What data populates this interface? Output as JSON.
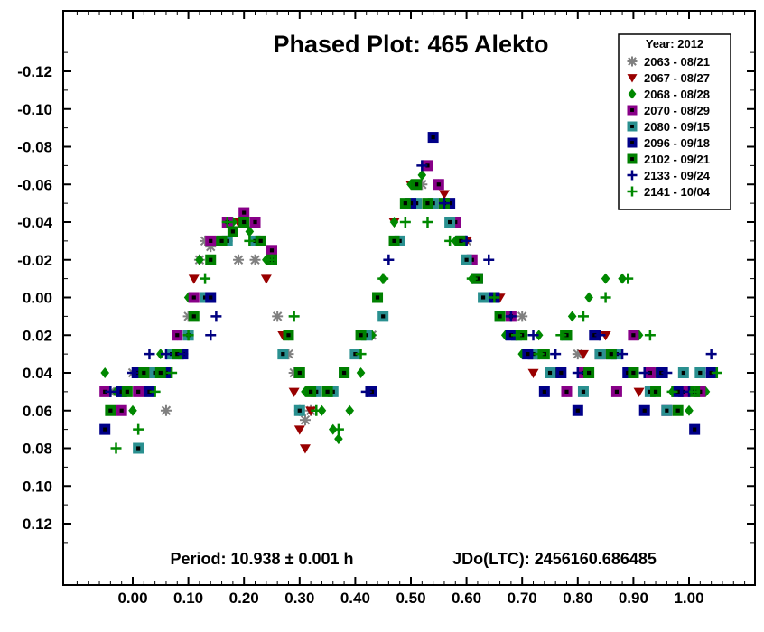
{
  "chart_data": {
    "type": "scatter",
    "title": "Phased Plot: 465 Alekto",
    "xlabel": "",
    "ylabel": "",
    "xlim": [
      -0.1,
      1.1
    ],
    "ylim": [
      0.14,
      -0.14
    ],
    "y_inverted": true,
    "grid": false,
    "x_ticks": [
      "0.00",
      "0.10",
      "0.20",
      "0.30",
      "0.40",
      "0.50",
      "0.60",
      "0.70",
      "0.80",
      "0.90",
      "1.00"
    ],
    "y_ticks": [
      "-0.12",
      "-0.10",
      "-0.08",
      "-0.06",
      "-0.04",
      "-0.02",
      "0.00",
      "0.02",
      "0.04",
      "0.06",
      "0.08",
      "0.10",
      "0.12"
    ],
    "footer_left": "Period: 10.938 ± 0.001 h",
    "footer_right": "JDo(LTC): 2456160.686485",
    "legend": {
      "title": "Year: 2012",
      "placement": "top-right"
    },
    "series": [
      {
        "name": "2063 - 08/21",
        "color": "#808080",
        "marker": "asterisk",
        "x": [
          -0.04,
          0.0,
          0.03,
          0.06,
          0.1,
          0.12,
          0.13,
          0.14,
          0.17,
          0.19,
          0.22,
          0.26,
          0.28,
          0.29,
          0.3,
          0.31,
          0.32,
          0.38,
          0.43,
          0.52,
          0.55,
          0.6,
          0.7,
          0.8,
          0.9,
          0.99,
          1.04
        ],
        "y": [
          0.05,
          0.04,
          0.04,
          0.06,
          0.01,
          -0.02,
          -0.03,
          -0.027,
          -0.03,
          -0.02,
          -0.02,
          0.01,
          0.03,
          0.04,
          0.06,
          0.065,
          0.06,
          0.04,
          0.02,
          -0.06,
          -0.05,
          -0.03,
          0.01,
          0.03,
          0.04,
          0.05,
          0.04
        ]
      },
      {
        "name": "2067 - 08/27",
        "color": "#990000",
        "marker": "triangle-down",
        "x": [
          0.11,
          0.15,
          0.19,
          0.24,
          0.27,
          0.29,
          0.3,
          0.31,
          0.32,
          0.47,
          0.5,
          0.53,
          0.56,
          0.6,
          0.66,
          0.72,
          0.78,
          0.81,
          0.85,
          0.91
        ],
        "y": [
          -0.01,
          -0.03,
          -0.04,
          -0.01,
          0.02,
          0.05,
          0.07,
          0.08,
          0.06,
          -0.04,
          -0.06,
          -0.07,
          -0.055,
          -0.03,
          0.0,
          0.04,
          0.05,
          0.03,
          0.02,
          0.05
        ]
      },
      {
        "name": "2068 - 08/28",
        "color": "#008800",
        "marker": "diamond",
        "x": [
          -0.05,
          -0.03,
          0.0,
          0.02,
          0.05,
          0.08,
          0.1,
          0.12,
          0.15,
          0.18,
          0.21,
          0.24,
          0.28,
          0.31,
          0.34,
          0.36,
          0.37,
          0.39,
          0.41,
          0.43,
          0.45,
          0.47,
          0.5,
          0.52,
          0.55,
          0.58,
          0.61,
          0.64,
          0.67,
          0.7,
          0.73,
          0.76,
          0.79,
          0.82,
          0.85,
          0.88,
          0.91,
          0.94,
          0.97,
          1.0,
          1.03
        ],
        "y": [
          0.04,
          0.05,
          0.06,
          0.04,
          0.03,
          0.02,
          0.0,
          -0.02,
          -0.03,
          -0.04,
          -0.035,
          -0.02,
          0.02,
          0.05,
          0.06,
          0.07,
          0.075,
          0.06,
          0.04,
          0.02,
          -0.01,
          -0.04,
          -0.06,
          -0.065,
          -0.06,
          -0.03,
          -0.01,
          0.0,
          0.02,
          0.03,
          0.02,
          0.04,
          0.01,
          0.0,
          -0.01,
          -0.01,
          0.02,
          0.04,
          0.05,
          0.06,
          0.05
        ]
      },
      {
        "name": "2070 - 08/29",
        "color": "#880088",
        "marker": "square-dot",
        "x": [
          -0.05,
          -0.02,
          0.01,
          0.04,
          0.08,
          0.11,
          0.14,
          0.17,
          0.2,
          0.22,
          0.25,
          0.53,
          0.55,
          0.58,
          0.61,
          0.64,
          0.68,
          0.72,
          0.75,
          0.78,
          0.81,
          0.84,
          0.87,
          0.9,
          0.93,
          0.96,
          0.99,
          1.02
        ],
        "y": [
          0.05,
          0.06,
          0.05,
          0.04,
          0.02,
          0.0,
          -0.03,
          -0.04,
          -0.045,
          -0.04,
          -0.025,
          -0.07,
          -0.06,
          -0.04,
          -0.02,
          0.0,
          0.01,
          0.03,
          0.04,
          0.05,
          0.04,
          0.03,
          0.05,
          0.02,
          0.04,
          0.06,
          0.05,
          0.05
        ]
      },
      {
        "name": "2080 - 09/15",
        "color": "#2a9090",
        "marker": "square-dot",
        "x": [
          -0.02,
          0.01,
          0.04,
          0.07,
          0.1,
          0.13,
          0.17,
          0.22,
          0.27,
          0.3,
          0.33,
          0.36,
          0.38,
          0.4,
          0.42,
          0.45,
          0.48,
          0.51,
          0.54,
          0.57,
          0.6,
          0.63,
          0.66,
          0.69,
          0.72,
          0.75,
          0.78,
          0.81,
          0.84,
          0.87,
          0.9,
          0.93,
          0.96,
          0.99,
          1.02
        ],
        "y": [
          0.05,
          0.08,
          0.04,
          0.03,
          0.02,
          0.0,
          -0.03,
          -0.03,
          0.03,
          0.06,
          0.05,
          0.05,
          0.04,
          0.03,
          0.02,
          0.01,
          -0.03,
          -0.05,
          -0.05,
          -0.04,
          -0.02,
          0.0,
          0.01,
          0.02,
          0.03,
          0.04,
          0.02,
          0.05,
          0.03,
          0.03,
          0.04,
          0.05,
          0.06,
          0.04,
          0.04
        ]
      },
      {
        "name": "2096 - 09/18",
        "color": "#000088",
        "marker": "square-dot",
        "x": [
          -0.05,
          -0.02,
          0.01,
          0.03,
          0.06,
          0.09,
          0.14,
          0.43,
          0.5,
          0.54,
          0.57,
          0.59,
          0.62,
          0.65,
          0.68,
          0.71,
          0.74,
          0.77,
          0.8,
          0.83,
          0.86,
          0.89,
          0.92,
          0.95,
          0.98,
          1.01,
          1.04
        ],
        "y": [
          0.07,
          0.05,
          0.04,
          0.05,
          0.04,
          0.03,
          0.0,
          0.05,
          -0.05,
          -0.085,
          -0.05,
          -0.03,
          -0.01,
          0.0,
          0.02,
          0.03,
          0.05,
          0.04,
          0.06,
          0.02,
          0.03,
          0.04,
          0.06,
          0.04,
          0.05,
          0.07,
          0.04
        ]
      },
      {
        "name": "2102 - 09/21",
        "color": "#008000",
        "marker": "square-dot",
        "x": [
          -0.04,
          -0.01,
          0.02,
          0.05,
          0.08,
          0.11,
          0.14,
          0.16,
          0.18,
          0.2,
          0.23,
          0.25,
          0.28,
          0.3,
          0.32,
          0.35,
          0.38,
          0.41,
          0.44,
          0.47,
          0.49,
          0.51,
          0.53,
          0.56,
          0.59,
          0.62,
          0.66,
          0.7,
          0.74,
          0.78,
          0.82,
          0.86,
          0.9,
          0.94,
          0.98,
          1.01
        ],
        "y": [
          0.06,
          0.05,
          0.04,
          0.04,
          0.03,
          0.01,
          -0.02,
          -0.03,
          -0.035,
          -0.04,
          -0.03,
          -0.02,
          0.02,
          0.04,
          0.05,
          0.05,
          0.04,
          0.02,
          0.0,
          -0.03,
          -0.05,
          -0.06,
          -0.05,
          -0.05,
          -0.03,
          -0.01,
          0.01,
          0.02,
          0.03,
          0.02,
          0.04,
          0.03,
          0.04,
          0.05,
          0.06,
          0.05
        ]
      },
      {
        "name": "2133 - 09/24",
        "color": "#000080",
        "marker": "plus",
        "x": [
          -0.04,
          0.0,
          0.03,
          0.06,
          0.09,
          0.14,
          0.15,
          0.42,
          0.46,
          0.52,
          0.56,
          0.6,
          0.64,
          0.68,
          0.72,
          0.76,
          0.8,
          0.84,
          0.88,
          0.92,
          0.96,
          1.0,
          1.04
        ],
        "y": [
          0.05,
          0.04,
          0.03,
          0.03,
          0.03,
          0.02,
          0.01,
          0.05,
          -0.02,
          -0.07,
          -0.05,
          -0.03,
          -0.02,
          0.01,
          0.02,
          0.03,
          0.04,
          0.02,
          0.03,
          0.04,
          0.04,
          0.05,
          0.03
        ]
      },
      {
        "name": "2141 - 10/04",
        "color": "#008800",
        "marker": "plus",
        "x": [
          -0.03,
          0.01,
          0.04,
          0.07,
          0.1,
          0.13,
          0.17,
          0.21,
          0.25,
          0.29,
          0.33,
          0.37,
          0.41,
          0.45,
          0.49,
          0.53,
          0.57,
          0.61,
          0.65,
          0.69,
          0.73,
          0.77,
          0.81,
          0.85,
          0.89,
          0.93,
          0.97,
          1.01,
          1.05
        ],
        "y": [
          0.08,
          0.07,
          0.05,
          0.04,
          0.02,
          -0.01,
          -0.04,
          -0.03,
          -0.02,
          0.01,
          0.06,
          0.07,
          0.03,
          -0.01,
          -0.04,
          -0.04,
          -0.03,
          -0.01,
          0.0,
          0.02,
          0.03,
          0.02,
          0.01,
          0.0,
          -0.01,
          0.02,
          0.05,
          0.05,
          0.04
        ]
      }
    ]
  }
}
